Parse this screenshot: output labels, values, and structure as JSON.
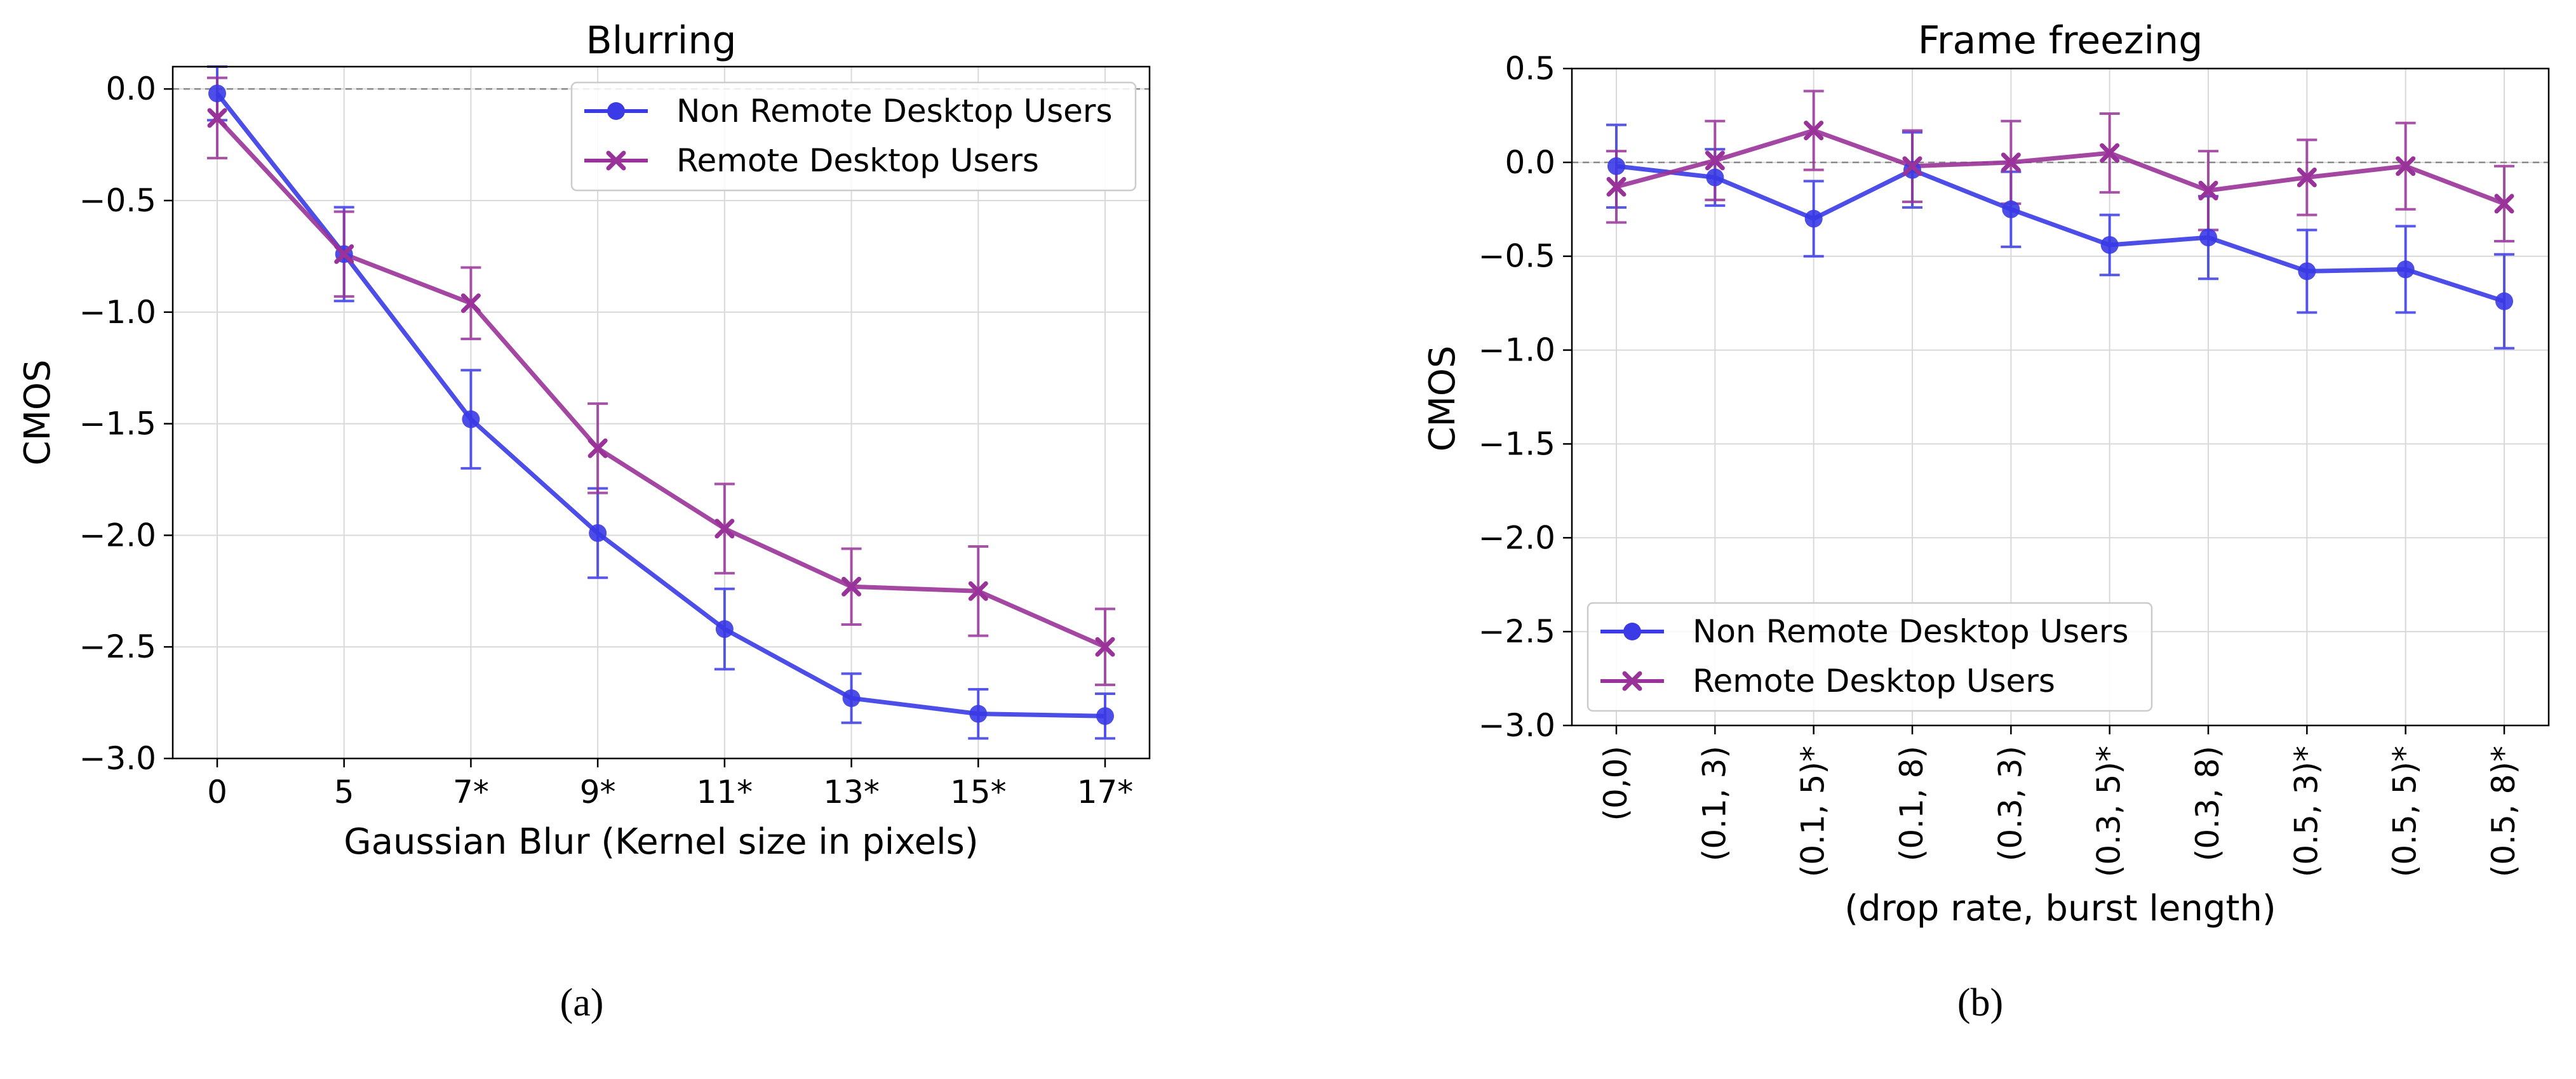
{
  "colors": {
    "non_remote": "#3a3ae6",
    "remote": "#993399",
    "grid": "#d9d9d9",
    "zero_line": "#888888"
  },
  "chart_data": [
    {
      "type": "line",
      "title": "Blurring",
      "xlabel": "Gaussian Blur (Kernel size in pixels)",
      "ylabel": "CMOS",
      "caption": "(a)",
      "categories": [
        "0",
        "5",
        "7*",
        "9*",
        "11*",
        "13*",
        "15*",
        "17*"
      ],
      "ylim": [
        -3.0,
        0.1
      ],
      "yticks": [
        0.0,
        -0.5,
        -1.0,
        -1.5,
        -2.0,
        -2.5,
        -3.0
      ],
      "ytick_labels": [
        "0.0",
        "−0.5",
        "−1.0",
        "−1.5",
        "−2.0",
        "−2.5",
        "−3.0"
      ],
      "grid": true,
      "reference_line_y": 0,
      "legend_placement": "top-right",
      "series": [
        {
          "name": "Non Remote Desktop Users",
          "marker": "circle",
          "color": "#3a3ae6",
          "values": [
            -0.02,
            -0.74,
            -1.48,
            -1.99,
            -2.42,
            -2.73,
            -2.8,
            -2.81
          ],
          "errors": [
            0.12,
            0.21,
            0.22,
            0.2,
            0.18,
            0.11,
            0.11,
            0.1
          ]
        },
        {
          "name": "Remote Desktop Users",
          "marker": "x",
          "color": "#993399",
          "values": [
            -0.13,
            -0.74,
            -0.96,
            -1.61,
            -1.97,
            -2.23,
            -2.25,
            -2.5
          ],
          "errors": [
            0.18,
            0.19,
            0.16,
            0.2,
            0.2,
            0.17,
            0.2,
            0.17
          ]
        }
      ]
    },
    {
      "type": "line",
      "title": "Frame freezing",
      "xlabel": "(drop rate, burst length)",
      "ylabel": "CMOS",
      "caption": "(b)",
      "categories": [
        "(0,0)",
        "(0.1, 3)",
        "(0.1, 5)*",
        "(0.1, 8)",
        "(0.3, 3)",
        "(0.3, 5)*",
        "(0.3, 8)",
        "(0.5, 3)*",
        "(0.5, 5)*",
        "(0.5, 8)*"
      ],
      "ylim": [
        -3.0,
        0.5
      ],
      "yticks": [
        0.5,
        0.0,
        -0.5,
        -1.0,
        -1.5,
        -2.0,
        -2.5,
        -3.0
      ],
      "ytick_labels": [
        "0.5",
        "0.0",
        "−0.5",
        "−1.0",
        "−1.5",
        "−2.0",
        "−2.5",
        "−3.0"
      ],
      "grid": true,
      "reference_line_y": 0,
      "legend_placement": "lower-left",
      "series": [
        {
          "name": "Non Remote Desktop Users",
          "marker": "circle",
          "color": "#3a3ae6",
          "values": [
            -0.02,
            -0.08,
            -0.3,
            -0.04,
            -0.25,
            -0.44,
            -0.4,
            -0.58,
            -0.57,
            -0.74
          ],
          "errors": [
            0.22,
            0.15,
            0.2,
            0.2,
            0.2,
            0.16,
            0.22,
            0.22,
            0.23,
            0.25
          ]
        },
        {
          "name": "Remote Desktop Users",
          "marker": "x",
          "color": "#993399",
          "values": [
            -0.13,
            0.01,
            0.17,
            -0.02,
            0.0,
            0.05,
            -0.15,
            -0.08,
            -0.02,
            -0.22
          ],
          "errors": [
            0.19,
            0.21,
            0.21,
            0.19,
            0.22,
            0.21,
            0.21,
            0.2,
            0.23,
            0.2
          ]
        }
      ]
    }
  ]
}
